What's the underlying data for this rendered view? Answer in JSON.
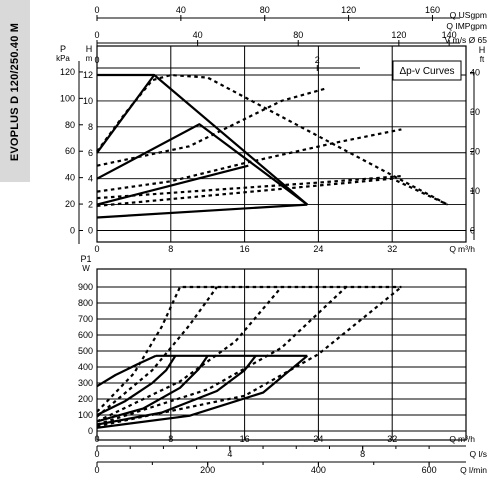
{
  "product": "EVOPLUS D 120/250.40 M",
  "legend": "Δp-v Curves",
  "chart_data": [
    {
      "type": "line",
      "name": "head",
      "x_unit": "Q m³/h",
      "xlim": [
        0,
        40
      ],
      "xticks": [
        0,
        8,
        16,
        24,
        32
      ],
      "left_axis_outer": {
        "label": "P kPa",
        "ticks": [
          0,
          20,
          40,
          60,
          80,
          100,
          120
        ]
      },
      "left_axis_inner": {
        "label": "H m",
        "ylim": [
          0,
          13
        ],
        "ticks": [
          0,
          2,
          4,
          6,
          8,
          10,
          12
        ]
      },
      "right_axis": {
        "label": "H ft",
        "ticks": [
          0,
          10,
          20,
          30,
          40
        ]
      },
      "top_axes": [
        {
          "label": "Q USgpm",
          "ticks": [
            0,
            40,
            80,
            120,
            160
          ],
          "max": 176
        },
        {
          "label": "Q IMPgpm",
          "ticks": [
            0,
            40,
            80,
            120,
            140
          ],
          "max": 146.7
        },
        {
          "label": "V m/s Ø 65",
          "ticks": [
            0,
            2,
            4,
            6
          ],
          "max": 3.35
        }
      ],
      "solid_curves": [
        {
          "points": [
            [
              0,
              12
            ],
            [
              6.2,
              12
            ],
            [
              22.8,
              2
            ]
          ]
        },
        {
          "points": [
            [
              0,
              6
            ],
            [
              6.2,
              12
            ]
          ]
        },
        {
          "points": [
            [
              0,
              4
            ],
            [
              11.1,
              8.2
            ],
            [
              22.8,
              2
            ]
          ]
        },
        {
          "points": [
            [
              0,
              2
            ],
            [
              16.4,
              5
            ]
          ]
        },
        {
          "points": [
            [
              0,
              1
            ],
            [
              22.8,
              2
            ]
          ]
        }
      ],
      "dashed_curves": [
        {
          "points": [
            [
              0,
              6.1
            ],
            [
              3,
              9
            ],
            [
              6,
              11.6
            ],
            [
              8,
              12
            ],
            [
              12,
              11.8
            ],
            [
              38,
              2
            ]
          ]
        },
        {
          "points": [
            [
              0,
              5
            ],
            [
              10,
              6.5
            ],
            [
              20,
              10
            ],
            [
              25,
              11
            ]
          ]
        },
        {
          "points": [
            [
              0,
              3
            ],
            [
              8,
              3.8
            ],
            [
              16,
              5.2
            ],
            [
              26,
              6.8
            ],
            [
              33,
              7.8
            ]
          ]
        },
        {
          "points": [
            [
              0,
              2.5
            ],
            [
              12,
              3.1
            ],
            [
              24,
              3.7
            ],
            [
              33,
              4.2
            ]
          ]
        },
        {
          "points": [
            [
              0,
              1.9
            ],
            [
              32,
              4
            ],
            [
              38,
              2
            ]
          ]
        }
      ]
    },
    {
      "type": "line",
      "name": "power",
      "y_label": "P1 W",
      "ylim": [
        0,
        900
      ],
      "yticks": [
        0,
        100,
        200,
        300,
        400,
        500,
        600,
        700,
        800,
        900
      ],
      "x_unit": "Q m³/h",
      "xlim": [
        0,
        40
      ],
      "xticks": [
        0,
        8,
        16,
        24,
        32
      ],
      "bottom_axes": [
        {
          "label": "Q l/s",
          "ticks": [
            0,
            4,
            8
          ]
        },
        {
          "label": "Q l/min",
          "ticks": [
            0,
            200,
            400,
            600
          ]
        }
      ],
      "solid_curves": [
        {
          "points": [
            [
              0,
              20
            ],
            [
              10,
              95
            ],
            [
              18,
              240
            ],
            [
              22.8,
              470
            ]
          ]
        },
        {
          "points": [
            [
              6.4,
              470
            ],
            [
              22.8,
              470
            ]
          ]
        },
        {
          "points": [
            [
              0,
              280
            ],
            [
              2,
              350
            ],
            [
              4.5,
              420
            ],
            [
              6.4,
              470
            ]
          ]
        },
        {
          "points": [
            [
              0,
              100
            ],
            [
              3,
              185
            ],
            [
              6,
              300
            ],
            [
              7.5,
              380
            ],
            [
              8.5,
              470
            ]
          ]
        },
        {
          "points": [
            [
              0,
              60
            ],
            [
              5,
              140
            ],
            [
              9,
              270
            ],
            [
              11,
              385
            ],
            [
              12,
              470
            ]
          ]
        },
        {
          "points": [
            [
              0,
              40
            ],
            [
              7,
              115
            ],
            [
              13,
              250
            ],
            [
              16,
              380
            ],
            [
              17.2,
              470
            ]
          ]
        }
      ],
      "dashed_curves": [
        {
          "points": [
            [
              0,
              120
            ],
            [
              4,
              360
            ],
            [
              7,
              650
            ],
            [
              9,
              900
            ],
            [
              33,
              900
            ]
          ]
        },
        {
          "points": [
            [
              0,
              90
            ],
            [
              6,
              380
            ],
            [
              10,
              660
            ],
            [
              13,
              900
            ]
          ]
        },
        {
          "points": [
            [
              0,
              60
            ],
            [
              9,
              310
            ],
            [
              15,
              560
            ],
            [
              20,
              900
            ]
          ]
        },
        {
          "points": [
            [
              0,
              40
            ],
            [
              12,
              260
            ],
            [
              20,
              520
            ],
            [
              27,
              900
            ]
          ]
        },
        {
          "points": [
            [
              0,
              30
            ],
            [
              16,
              220
            ],
            [
              24,
              480
            ],
            [
              33,
              900
            ]
          ]
        }
      ]
    }
  ]
}
